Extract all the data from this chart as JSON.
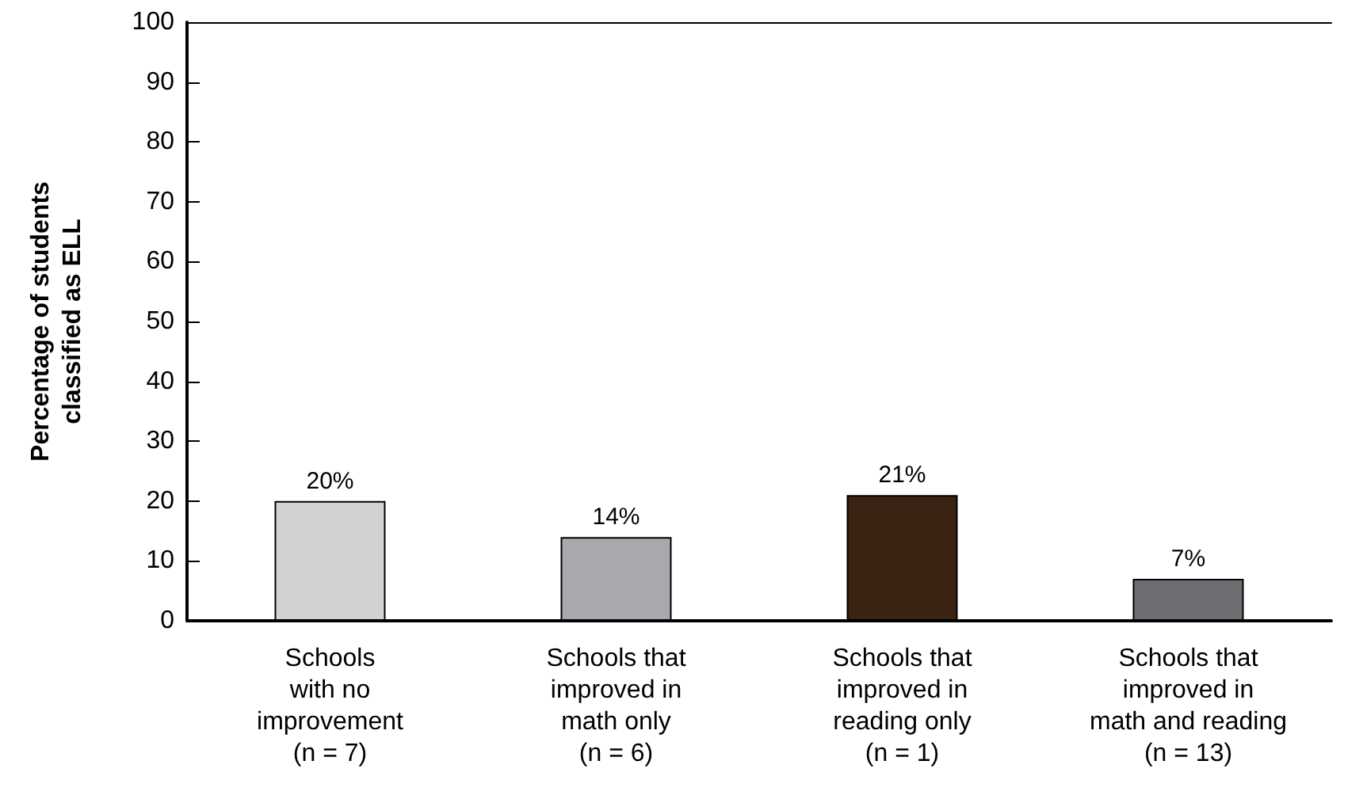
{
  "chart_data": {
    "type": "bar",
    "ylabel": "Percentage of students\nclassified as ELL",
    "categories": [
      "Schools\nwith no\nimprovement\n(n = 7)",
      "Schools that\nimproved in\nmath only\n(n = 6)",
      "Schools that\nimproved in\nreading only\n(n = 1)",
      "Schools that\nimproved in\nmath and reading\n(n = 13)"
    ],
    "values": [
      20,
      14,
      21,
      7
    ],
    "colors": [
      "#d1d2d4",
      "#a7a9ac",
      "#3b2314",
      "#6d6e71"
    ],
    "value_labels": [
      "20%",
      "14%",
      "21%",
      "7%"
    ],
    "ylim": [
      0,
      100
    ],
    "yticks": [
      0,
      10,
      20,
      30,
      40,
      50,
      60,
      70,
      80,
      90,
      100
    ],
    "grid": false
  }
}
